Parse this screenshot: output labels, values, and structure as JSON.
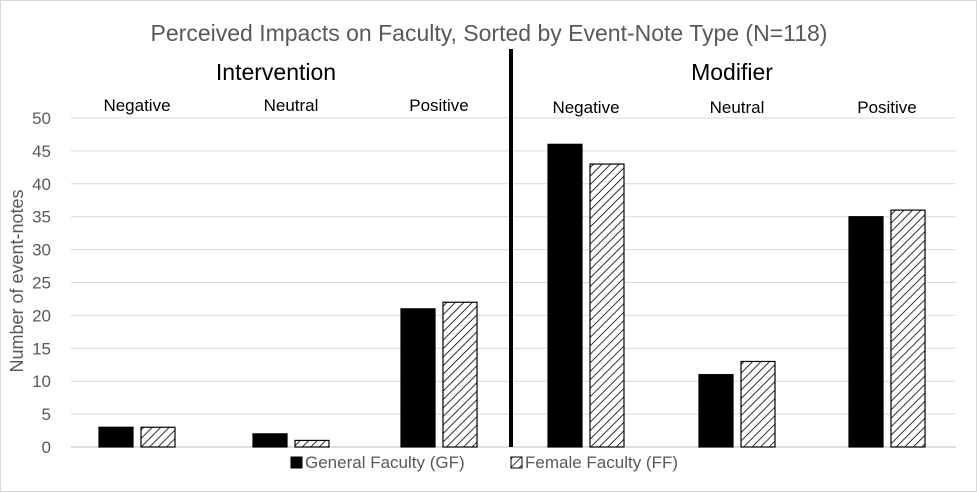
{
  "chart_data": {
    "type": "bar",
    "title": "Perceived Impacts on Faculty, Sorted by Event-Note Type (N=118)",
    "ylabel": "Number of event-notes",
    "xlabel": "",
    "ylim": [
      0,
      50
    ],
    "yticks": [
      0,
      5,
      10,
      15,
      20,
      25,
      30,
      35,
      40,
      45,
      50
    ],
    "grid": true,
    "legend_position": "bottom",
    "groups": [
      {
        "label": "Intervention",
        "categories": [
          "Negative",
          "Neutral",
          "Positive"
        ]
      },
      {
        "label": "Modifier",
        "categories": [
          "Negative",
          "Neutral",
          "Positive"
        ]
      }
    ],
    "categories": [
      "Negative",
      "Neutral",
      "Positive",
      "Negative",
      "Neutral",
      "Positive"
    ],
    "series": [
      {
        "name": "General Faculty (GF)",
        "values": [
          3,
          2,
          21,
          46,
          11,
          35
        ],
        "fill": "solid",
        "color": "#000000"
      },
      {
        "name": "Female Faculty (FF)",
        "values": [
          3,
          1,
          22,
          43,
          13,
          36
        ],
        "fill": "hatched",
        "color": "#000000"
      }
    ]
  }
}
